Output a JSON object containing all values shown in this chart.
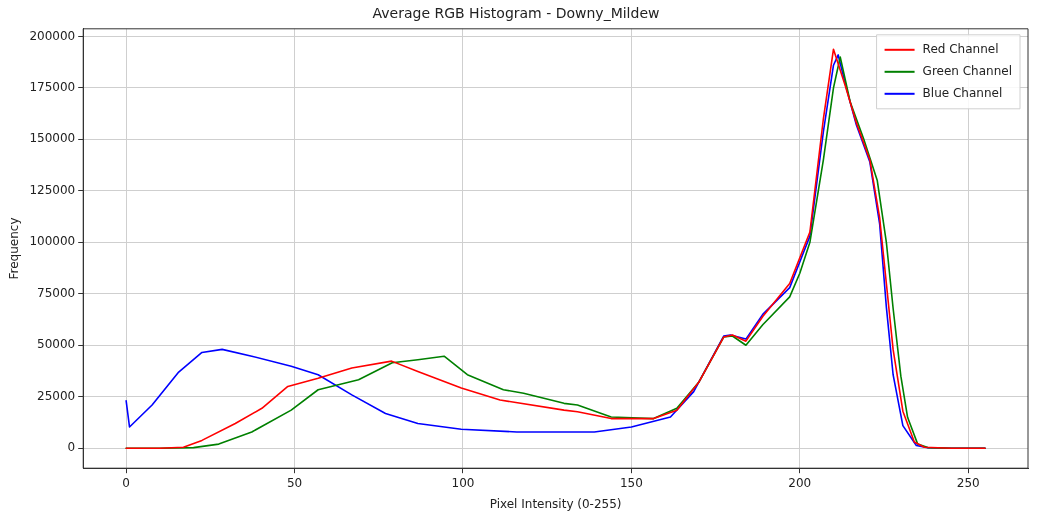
{
  "chart_data": {
    "type": "line",
    "title": "Average RGB Histogram - Downy_Mildew",
    "xlabel": "Pixel Intensity (0-255)",
    "ylabel": "Frequency",
    "xlim": [
      -12.75,
      267.75
    ],
    "xticks": [
      0,
      50,
      100,
      150,
      200,
      250
    ],
    "ylim": [
      -9700,
      203700
    ],
    "yticks": [
      0,
      25000,
      50000,
      75000,
      100000,
      125000,
      150000,
      175000,
      200000
    ],
    "grid": true,
    "legend": "top right",
    "marker": "none",
    "line_style": "solid",
    "series": [
      {
        "name": "Red Channel",
        "color": "#ff0000",
        "x": [
          0,
          10,
          17,
          22.5,
          32.4,
          40.3,
          48,
          57,
          67,
          78.8,
          86.6,
          99.5,
          111,
          130,
          134,
          144,
          156.6,
          163.5,
          170,
          177.4,
          180,
          184,
          189,
          197,
          203,
          207,
          210,
          213.5,
          216.8,
          220.8,
          223.7,
          225.7,
          227.7,
          230.6,
          234,
          237,
          245,
          255
        ],
        "values": [
          0,
          0,
          500,
          3800,
          12000,
          19400,
          30000,
          34000,
          39000,
          42300,
          37300,
          29200,
          23400,
          18500,
          17700,
          14400,
          14400,
          18500,
          32000,
          54000,
          55000,
          52000,
          64000,
          80000,
          105000,
          160000,
          193800,
          176000,
          158000,
          140000,
          112000,
          80000,
          48000,
          18000,
          3000,
          500,
          0,
          0
        ]
      },
      {
        "name": "Green Channel",
        "color": "#008000",
        "x": [
          0,
          10,
          20,
          27.5,
          37.3,
          49,
          57,
          69,
          79,
          86.6,
          94.4,
          101.3,
          112,
          118,
          130,
          134,
          144,
          156.6,
          163.5,
          170,
          177.4,
          180,
          184,
          189,
          197,
          200,
          203,
          207,
          210,
          212,
          215,
          219,
          223,
          225.7,
          227.7,
          230,
          232,
          235,
          238,
          245,
          255
        ],
        "values": [
          0,
          0,
          300,
          2000,
          7900,
          18500,
          28400,
          33300,
          41500,
          43000,
          44700,
          35700,
          28400,
          26700,
          21800,
          21000,
          15200,
          14400,
          19400,
          32000,
          54000,
          54500,
          50000,
          60000,
          73500,
          85000,
          100000,
          140000,
          175000,
          190000,
          168000,
          150000,
          130000,
          100000,
          68000,
          35000,
          15000,
          2000,
          300,
          0,
          0
        ]
      },
      {
        "name": "Blue Channel",
        "color": "#0000ff",
        "x": [
          0,
          1,
          7.7,
          15.6,
          22.5,
          28.5,
          37.3,
          49,
          57,
          67,
          77,
          86.6,
          99.5,
          116,
          130,
          139,
          150,
          161.6,
          168.5,
          177.4,
          179.4,
          184,
          189,
          197,
          203,
          207,
          210,
          211.4,
          213.8,
          216.8,
          220.8,
          223.7,
          225.7,
          227.7,
          230.6,
          234.6,
          238,
          245,
          255
        ],
        "values": [
          23000,
          10300,
          21000,
          37000,
          46500,
          48000,
          44700,
          39800,
          35700,
          25900,
          16900,
          12000,
          9200,
          7900,
          7900,
          7900,
          10300,
          15200,
          27500,
          54500,
          55000,
          53000,
          65000,
          78000,
          103000,
          153700,
          186000,
          191000,
          175000,
          157000,
          139000,
          109000,
          68500,
          35700,
          11000,
          1300,
          200,
          0,
          0
        ]
      }
    ]
  }
}
